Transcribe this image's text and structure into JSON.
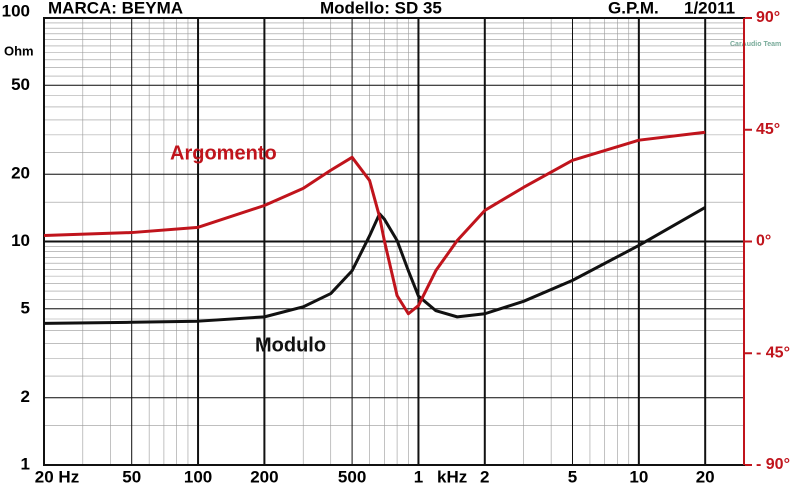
{
  "chart_data": {
    "type": "line",
    "header": {
      "brand": "MARCA: BEYMA",
      "model": "Modello: SD 35",
      "author": "G.P.M.",
      "date": "1/2011",
      "watermark": "CarAudio Team"
    },
    "y_unit": "Ohm",
    "x_unit": "kHz",
    "x": [
      20,
      50,
      100,
      200,
      300,
      400,
      500,
      600,
      666,
      700,
      800,
      900,
      1000,
      1200,
      1500,
      2000,
      3000,
      5000,
      10000,
      20000
    ],
    "series": [
      {
        "name": "Modulo",
        "color": "#111111",
        "axis": "y",
        "values": [
          4.3,
          4.35,
          4.4,
          4.6,
          5.1,
          5.85,
          7.4,
          10.6,
          13.3,
          12.6,
          10.1,
          7.4,
          5.7,
          4.9,
          4.6,
          4.75,
          5.4,
          6.7,
          9.6,
          14.2
        ]
      },
      {
        "name": "Argomento",
        "color": "#c0141c",
        "axis": "y2",
        "values": [
          2.4,
          3.6,
          5.7,
          14.5,
          21.4,
          28.7,
          33.9,
          24.6,
          10,
          0.4,
          -21.8,
          -29.1,
          -25.8,
          -11.7,
          0.4,
          12.5,
          21.8,
          32.7,
          40.8,
          44
        ]
      }
    ],
    "log_x": true,
    "log_y": true,
    "xlim": [
      20,
      30000
    ],
    "xticks": [
      {
        "value": 20,
        "label": "20 Hz"
      },
      50,
      100,
      200,
      500,
      {
        "value": 1000,
        "label": "1"
      },
      {
        "value": 2000,
        "label": "2"
      },
      {
        "value": 5000,
        "label": "5"
      },
      {
        "value": 10000,
        "label": "10"
      },
      {
        "value": 20000,
        "label": "20"
      }
    ],
    "ylim": [
      1,
      100
    ],
    "yticks": [
      1,
      2,
      5,
      10,
      20,
      50,
      100
    ],
    "y2lim": [
      -90,
      90
    ],
    "y2ticks": [
      {
        "value": -90,
        "label": "- 90°"
      },
      {
        "value": -45,
        "label": "- 45°"
      },
      {
        "value": 0,
        "label": "0°"
      },
      {
        "value": 45,
        "label": "45°"
      },
      {
        "value": 90,
        "label": "90°"
      }
    ],
    "grid": true
  }
}
